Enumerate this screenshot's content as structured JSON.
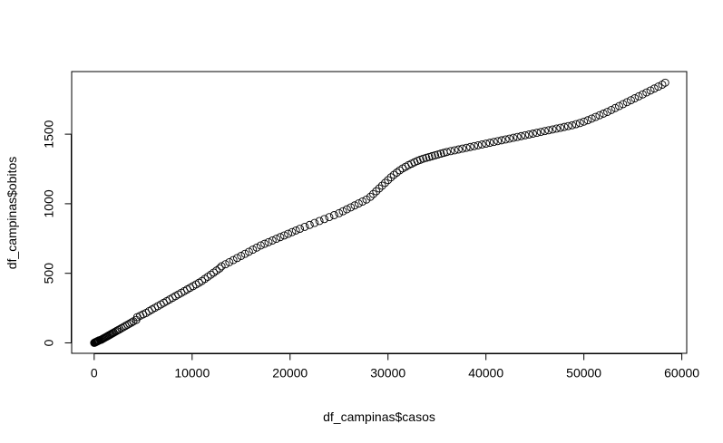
{
  "chart_data": {
    "type": "scatter",
    "title": "",
    "xlabel": "df_campinas$casos",
    "ylabel": "df_campinas$obitos",
    "xlim": [
      -2300,
      60500
    ],
    "ylim": [
      -75,
      1950
    ],
    "x_ticks": [
      0,
      10000,
      20000,
      30000,
      40000,
      50000,
      60000
    ],
    "y_ticks": [
      0,
      500,
      1000,
      1500
    ],
    "x_tick_labels": [
      "0",
      "10000",
      "20000",
      "30000",
      "40000",
      "50000",
      "60000"
    ],
    "y_tick_labels": [
      "0",
      "500",
      "1000",
      "1500"
    ],
    "grid": false,
    "legend": "none",
    "marker": "open-circle",
    "marker_color": "#000000",
    "points": [
      [
        0,
        0
      ],
      [
        50,
        2
      ],
      [
        100,
        4
      ],
      [
        150,
        5
      ],
      [
        200,
        7
      ],
      [
        250,
        9
      ],
      [
        300,
        11
      ],
      [
        350,
        12
      ],
      [
        400,
        14
      ],
      [
        450,
        16
      ],
      [
        500,
        18
      ],
      [
        600,
        20
      ],
      [
        700,
        22
      ],
      [
        800,
        26
      ],
      [
        900,
        30
      ],
      [
        1000,
        34
      ],
      [
        1100,
        38
      ],
      [
        1200,
        42
      ],
      [
        1300,
        46
      ],
      [
        1400,
        50
      ],
      [
        1500,
        54
      ],
      [
        1600,
        58
      ],
      [
        1700,
        62
      ],
      [
        1800,
        66
      ],
      [
        1900,
        70
      ],
      [
        2000,
        74
      ],
      [
        2150,
        80
      ],
      [
        2300,
        86
      ],
      [
        2450,
        92
      ],
      [
        2600,
        98
      ],
      [
        2800,
        106
      ],
      [
        3000,
        114
      ],
      [
        3200,
        122
      ],
      [
        3400,
        130
      ],
      [
        3600,
        138
      ],
      [
        3800,
        146
      ],
      [
        4000,
        155
      ],
      [
        4300,
        165
      ],
      [
        4400,
        185
      ],
      [
        4700,
        195
      ],
      [
        5000,
        205
      ],
      [
        5300,
        215
      ],
      [
        5600,
        228
      ],
      [
        5900,
        240
      ],
      [
        6200,
        252
      ],
      [
        6500,
        264
      ],
      [
        6800,
        276
      ],
      [
        7100,
        288
      ],
      [
        7400,
        300
      ],
      [
        7700,
        312
      ],
      [
        8000,
        324
      ],
      [
        8300,
        336
      ],
      [
        8600,
        348
      ],
      [
        8900,
        360
      ],
      [
        9200,
        372
      ],
      [
        9500,
        384
      ],
      [
        9800,
        396
      ],
      [
        10100,
        408
      ],
      [
        10400,
        420
      ],
      [
        10700,
        432
      ],
      [
        11000,
        445
      ],
      [
        11300,
        460
      ],
      [
        11600,
        475
      ],
      [
        11900,
        490
      ],
      [
        12200,
        505
      ],
      [
        12500,
        520
      ],
      [
        12800,
        535
      ],
      [
        13000,
        550
      ],
      [
        13400,
        565
      ],
      [
        13800,
        580
      ],
      [
        14200,
        595
      ],
      [
        14600,
        610
      ],
      [
        15000,
        625
      ],
      [
        15400,
        640
      ],
      [
        15800,
        655
      ],
      [
        16200,
        670
      ],
      [
        16600,
        685
      ],
      [
        17000,
        700
      ],
      [
        17400,
        712
      ],
      [
        17800,
        724
      ],
      [
        18200,
        736
      ],
      [
        18600,
        748
      ],
      [
        19000,
        760
      ],
      [
        19400,
        772
      ],
      [
        19800,
        784
      ],
      [
        20200,
        796
      ],
      [
        20600,
        808
      ],
      [
        21000,
        820
      ],
      [
        21500,
        834
      ],
      [
        22000,
        848
      ],
      [
        22500,
        862
      ],
      [
        23000,
        876
      ],
      [
        23500,
        890
      ],
      [
        24000,
        904
      ],
      [
        24500,
        918
      ],
      [
        25000,
        932
      ],
      [
        25400,
        946
      ],
      [
        25800,
        960
      ],
      [
        26200,
        974
      ],
      [
        26600,
        988
      ],
      [
        27000,
        1002
      ],
      [
        27400,
        1016
      ],
      [
        27800,
        1030
      ],
      [
        28200,
        1050
      ],
      [
        28500,
        1070
      ],
      [
        28800,
        1090
      ],
      [
        29100,
        1110
      ],
      [
        29400,
        1130
      ],
      [
        29700,
        1150
      ],
      [
        30000,
        1170
      ],
      [
        30300,
        1190
      ],
      [
        30600,
        1208
      ],
      [
        30900,
        1224
      ],
      [
        31200,
        1240
      ],
      [
        31500,
        1254
      ],
      [
        31800,
        1266
      ],
      [
        32100,
        1278
      ],
      [
        32400,
        1288
      ],
      [
        32700,
        1298
      ],
      [
        33000,
        1308
      ],
      [
        33300,
        1316
      ],
      [
        33600,
        1324
      ],
      [
        33900,
        1330
      ],
      [
        34200,
        1336
      ],
      [
        34500,
        1342
      ],
      [
        34800,
        1348
      ],
      [
        35100,
        1354
      ],
      [
        35400,
        1360
      ],
      [
        35700,
        1366
      ],
      [
        36000,
        1372
      ],
      [
        36400,
        1378
      ],
      [
        36800,
        1384
      ],
      [
        37200,
        1390
      ],
      [
        37600,
        1396
      ],
      [
        38000,
        1402
      ],
      [
        38400,
        1408
      ],
      [
        38800,
        1414
      ],
      [
        39200,
        1420
      ],
      [
        39600,
        1426
      ],
      [
        40000,
        1432
      ],
      [
        40400,
        1438
      ],
      [
        40800,
        1444
      ],
      [
        41200,
        1450
      ],
      [
        41600,
        1456
      ],
      [
        42000,
        1462
      ],
      [
        42400,
        1468
      ],
      [
        42800,
        1474
      ],
      [
        43200,
        1480
      ],
      [
        43600,
        1486
      ],
      [
        44000,
        1492
      ],
      [
        44400,
        1498
      ],
      [
        44800,
        1504
      ],
      [
        45200,
        1510
      ],
      [
        45600,
        1516
      ],
      [
        46000,
        1522
      ],
      [
        46400,
        1528
      ],
      [
        46800,
        1534
      ],
      [
        47200,
        1540
      ],
      [
        47600,
        1546
      ],
      [
        48000,
        1552
      ],
      [
        48400,
        1558
      ],
      [
        48800,
        1564
      ],
      [
        49200,
        1572
      ],
      [
        49600,
        1580
      ],
      [
        50000,
        1590
      ],
      [
        50400,
        1600
      ],
      [
        50800,
        1612
      ],
      [
        51200,
        1624
      ],
      [
        51600,
        1636
      ],
      [
        52000,
        1648
      ],
      [
        52400,
        1660
      ],
      [
        52800,
        1674
      ],
      [
        53200,
        1688
      ],
      [
        53600,
        1702
      ],
      [
        54000,
        1716
      ],
      [
        54400,
        1730
      ],
      [
        54800,
        1744
      ],
      [
        55200,
        1758
      ],
      [
        55600,
        1772
      ],
      [
        56000,
        1786
      ],
      [
        56400,
        1800
      ],
      [
        56800,
        1814
      ],
      [
        57200,
        1828
      ],
      [
        57600,
        1842
      ],
      [
        58000,
        1856
      ],
      [
        58300,
        1870
      ]
    ]
  }
}
